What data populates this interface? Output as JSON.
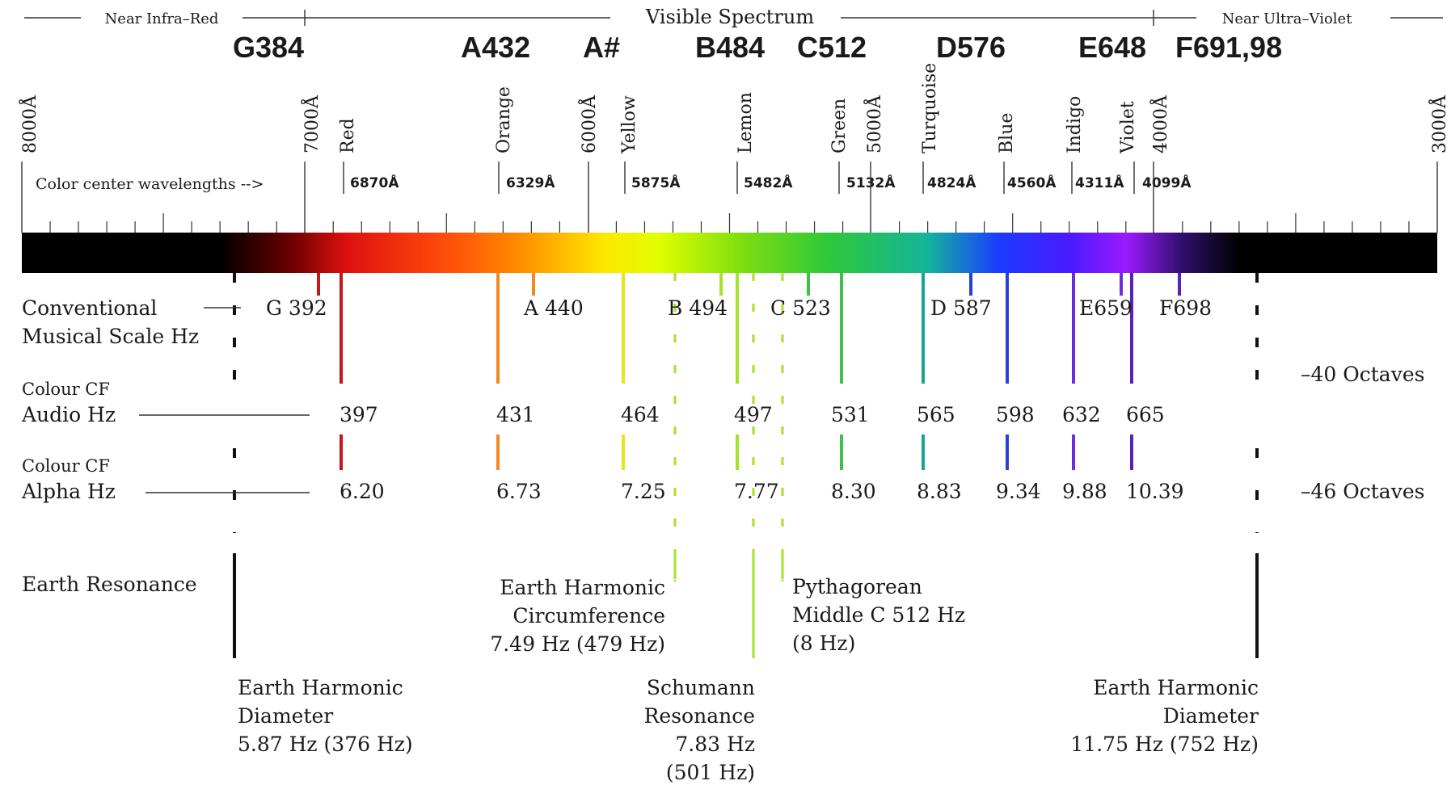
{
  "header": {
    "near_ir": "Near Infra–Red",
    "visible": "Visible Spectrum",
    "near_uv": "Near Ultra–Violet"
  },
  "pink_labels": [
    "G384",
    "A432",
    "A#",
    "B484",
    "C512",
    "D576",
    "E648",
    "F691,98"
  ],
  "pink_color": "#ff1a6e",
  "angstrom_labels": [
    "8000Å",
    "7000Å",
    "6000Å",
    "5000Å",
    "4000Å",
    "3000Å"
  ],
  "color_names": [
    "Red",
    "Orange",
    "Yellow",
    "Lemon",
    "Green",
    "Turquoise",
    "Blue",
    "Indigo",
    "Violet"
  ],
  "center_label": "Color center wavelengths -->",
  "center_wavelengths": [
    "6870Å",
    "6329Å",
    "5875Å",
    "5482Å",
    "5132Å",
    "4824Å",
    "4560Å",
    "4311Å",
    "4099Å"
  ],
  "rows": {
    "conventional_1": "Conventional",
    "conventional_2": "Musical Scale Hz",
    "audio_1": "Colour CF",
    "audio_2": "Audio Hz",
    "alpha_1": "Colour CF",
    "alpha_2": "Alpha Hz",
    "earth": "Earth Resonance",
    "octaves_40": "–40 Octaves",
    "octaves_46": "–46 Octaves"
  },
  "musical_notes": [
    "G 392",
    "A 440",
    "B 494",
    "C 523",
    "D 587",
    "E659",
    "F698"
  ],
  "audio_hz": [
    "397",
    "431",
    "464",
    "497",
    "531",
    "565",
    "598",
    "632",
    "665"
  ],
  "alpha_hz": [
    "6.20",
    "6.73",
    "7.25",
    "7.77",
    "8.30",
    "8.83",
    "9.34",
    "9.88",
    "10.39"
  ],
  "annotations": {
    "diam_left": [
      "Earth Harmonic",
      "Diameter",
      "5.87 Hz (376 Hz)"
    ],
    "circumference": [
      "Earth Harmonic",
      "Circumference",
      "7.49 Hz (479 Hz)"
    ],
    "schumann": [
      "Schumann",
      "Resonance",
      "7.83 Hz",
      "(501 Hz)"
    ],
    "pythagorean": [
      "Pythagorean",
      "Middle C 512 Hz",
      "(8 Hz)"
    ],
    "diam_right": [
      "Earth Harmonic",
      "Diameter",
      "11.75 Hz (752 Hz)"
    ]
  },
  "colors": {
    "red": "#c4161c",
    "orange": "#f08a24",
    "yellow": "#e6e619",
    "lemon": "#a6e22a",
    "green": "#3ec04a",
    "turquoise": "#1aa398",
    "blue": "#2a3fd6",
    "indigo": "#6a2ee0",
    "violet": "#5a20b8"
  }
}
